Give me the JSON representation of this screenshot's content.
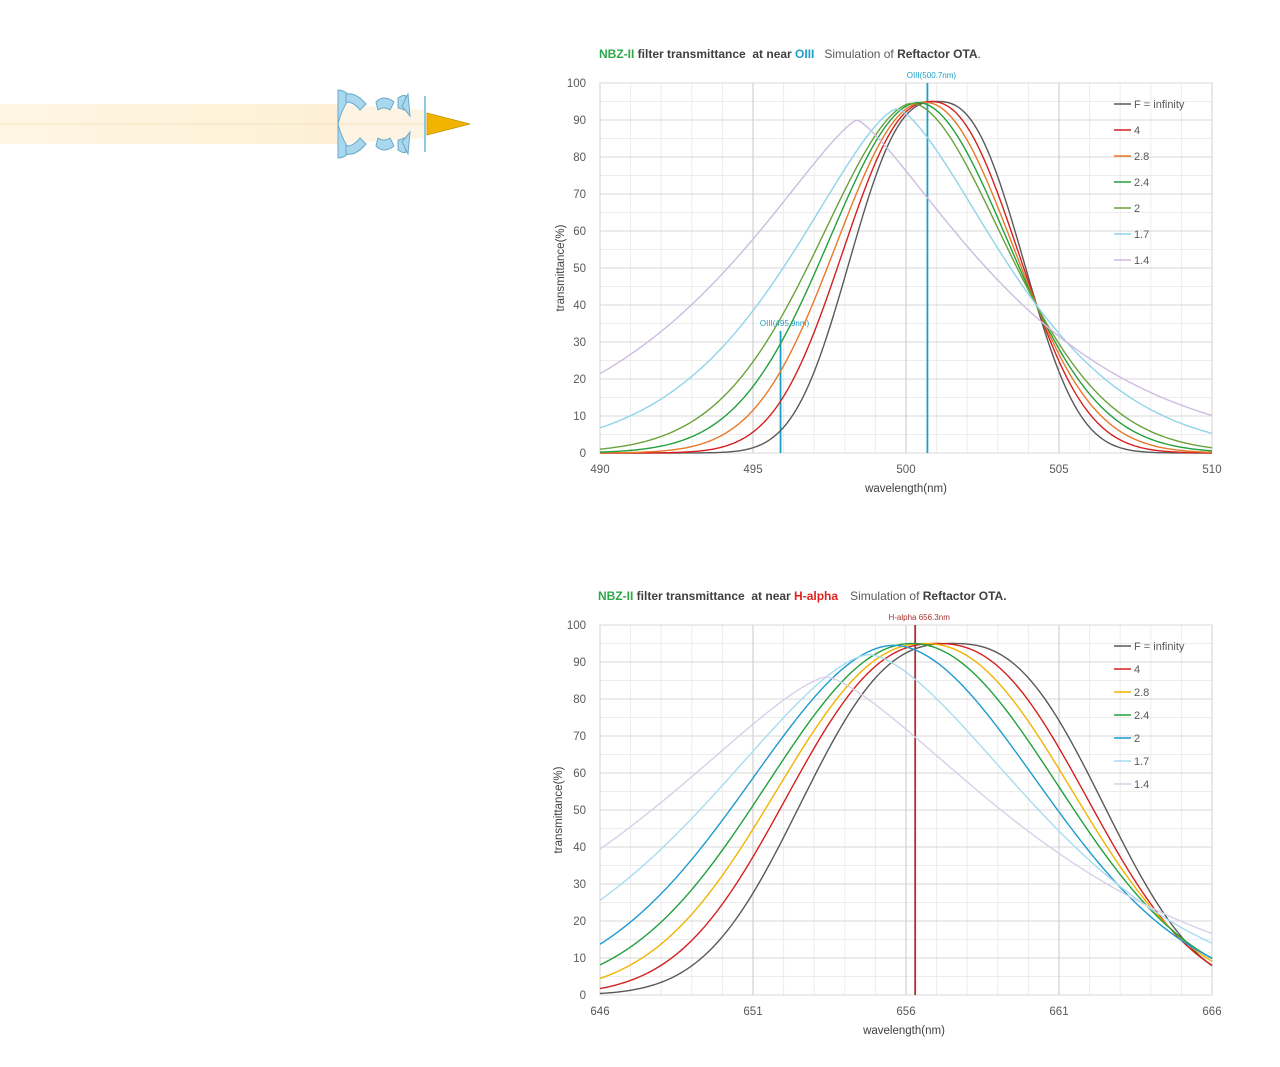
{
  "colors": {
    "green": "#2ea84a",
    "oiii_blue": "#1aa0c8",
    "halpha_red": "#e02020",
    "dark": "#404040",
    "grid_major": "#d0d0d0",
    "grid_minor": "#ececec"
  },
  "chart_data": [
    {
      "type": "line",
      "title_parts": {
        "filter": "NBZ-II",
        "mid": " filter transmittance  at near ",
        "line": "OIII",
        "sim": "Simulation of ",
        "ota": "Reftactor OTA",
        "end": "."
      },
      "xlabel": "wavelength(nm)",
      "ylabel": "transmittance(%)",
      "xlim": [
        490,
        510
      ],
      "ylim": [
        0,
        100
      ],
      "x_ticks": [
        490,
        495,
        500,
        505,
        510
      ],
      "y_ticks": [
        0,
        10,
        20,
        30,
        40,
        50,
        60,
        70,
        80,
        90,
        100
      ],
      "legend_position": "top-right",
      "markers": [
        {
          "x": 500.7,
          "label": "OIII(500.7nm)",
          "color": "#1aa0c8",
          "top": 100
        },
        {
          "x": 495.9,
          "label": "OIII(495.9nm)",
          "color": "#1aa0c8",
          "top": 33
        }
      ],
      "series": [
        {
          "name": "F = infinity",
          "color": "#595959",
          "center": 501.0,
          "peak": 95,
          "halfwidth": 3.0,
          "p": 2.6
        },
        {
          "name": "4",
          "color": "#d42020",
          "center": 500.8,
          "peak": 95,
          "halfwidth": 3.15,
          "p": 2.3
        },
        {
          "name": "2.8",
          "color": "#e8782a",
          "center": 500.6,
          "peak": 94.8,
          "halfwidth": 3.3,
          "p": 2.1
        },
        {
          "name": "2.4",
          "color": "#22a03c",
          "center": 500.4,
          "peak": 94.7,
          "halfwidth": 3.45,
          "p": 1.95
        },
        {
          "name": "2",
          "color": "#6aa23a",
          "center": 500.2,
          "peak": 94.5,
          "halfwidth": 3.6,
          "p": 1.8
        },
        {
          "name": "1.7",
          "color": "#8fd4ea",
          "center": 499.7,
          "peak": 93,
          "halfwidth": 4.0,
          "p": 1.5
        },
        {
          "name": "1.4",
          "color": "#cdbce0",
          "center": 498.4,
          "peak": 90,
          "halfwidth": 4.8,
          "p": 1.3
        }
      ]
    },
    {
      "type": "line",
      "title_parts": {
        "filter": "NBZ-II",
        "mid": " filter transmittance  at near ",
        "line": "H-alpha",
        "sim": "Simulation of ",
        "ota": "Reftactor OTA",
        "end": "."
      },
      "xlabel": "wavelength(nm)",
      "ylabel": "transmittance(%)",
      "xlim": [
        646,
        666
      ],
      "ylim": [
        0,
        100
      ],
      "x_ticks": [
        646,
        651,
        656,
        661,
        666
      ],
      "y_ticks": [
        0,
        10,
        20,
        30,
        40,
        50,
        60,
        70,
        80,
        90,
        100
      ],
      "legend_position": "top-right",
      "markers": [
        {
          "x": 656.3,
          "label": "H-alpha 656.3nm",
          "color": "#a83030",
          "top": 100
        }
      ],
      "series": [
        {
          "name": "F = infinity",
          "color": "#595959",
          "center": 657.5,
          "peak": 95,
          "halfwidth": 5.2,
          "p": 2.6
        },
        {
          "name": "4",
          "color": "#d42020",
          "center": 657.0,
          "peak": 95,
          "halfwidth": 5.3,
          "p": 2.4
        },
        {
          "name": "2.8",
          "color": "#f0b400",
          "center": 656.6,
          "peak": 95,
          "halfwidth": 5.4,
          "p": 2.2
        },
        {
          "name": "2.4",
          "color": "#22a03c",
          "center": 656.2,
          "peak": 95,
          "halfwidth": 5.5,
          "p": 2.05
        },
        {
          "name": "2",
          "color": "#1c9ad0",
          "center": 655.6,
          "peak": 94.5,
          "halfwidth": 5.6,
          "p": 1.9
        },
        {
          "name": "1.7",
          "color": "#a8dcf0",
          "center": 654.8,
          "peak": 92,
          "halfwidth": 6.0,
          "p": 1.6
        },
        {
          "name": "1.4",
          "color": "#d8d0e8",
          "center": 653.4,
          "peak": 86,
          "halfwidth": 6.8,
          "p": 1.4
        }
      ]
    }
  ]
}
